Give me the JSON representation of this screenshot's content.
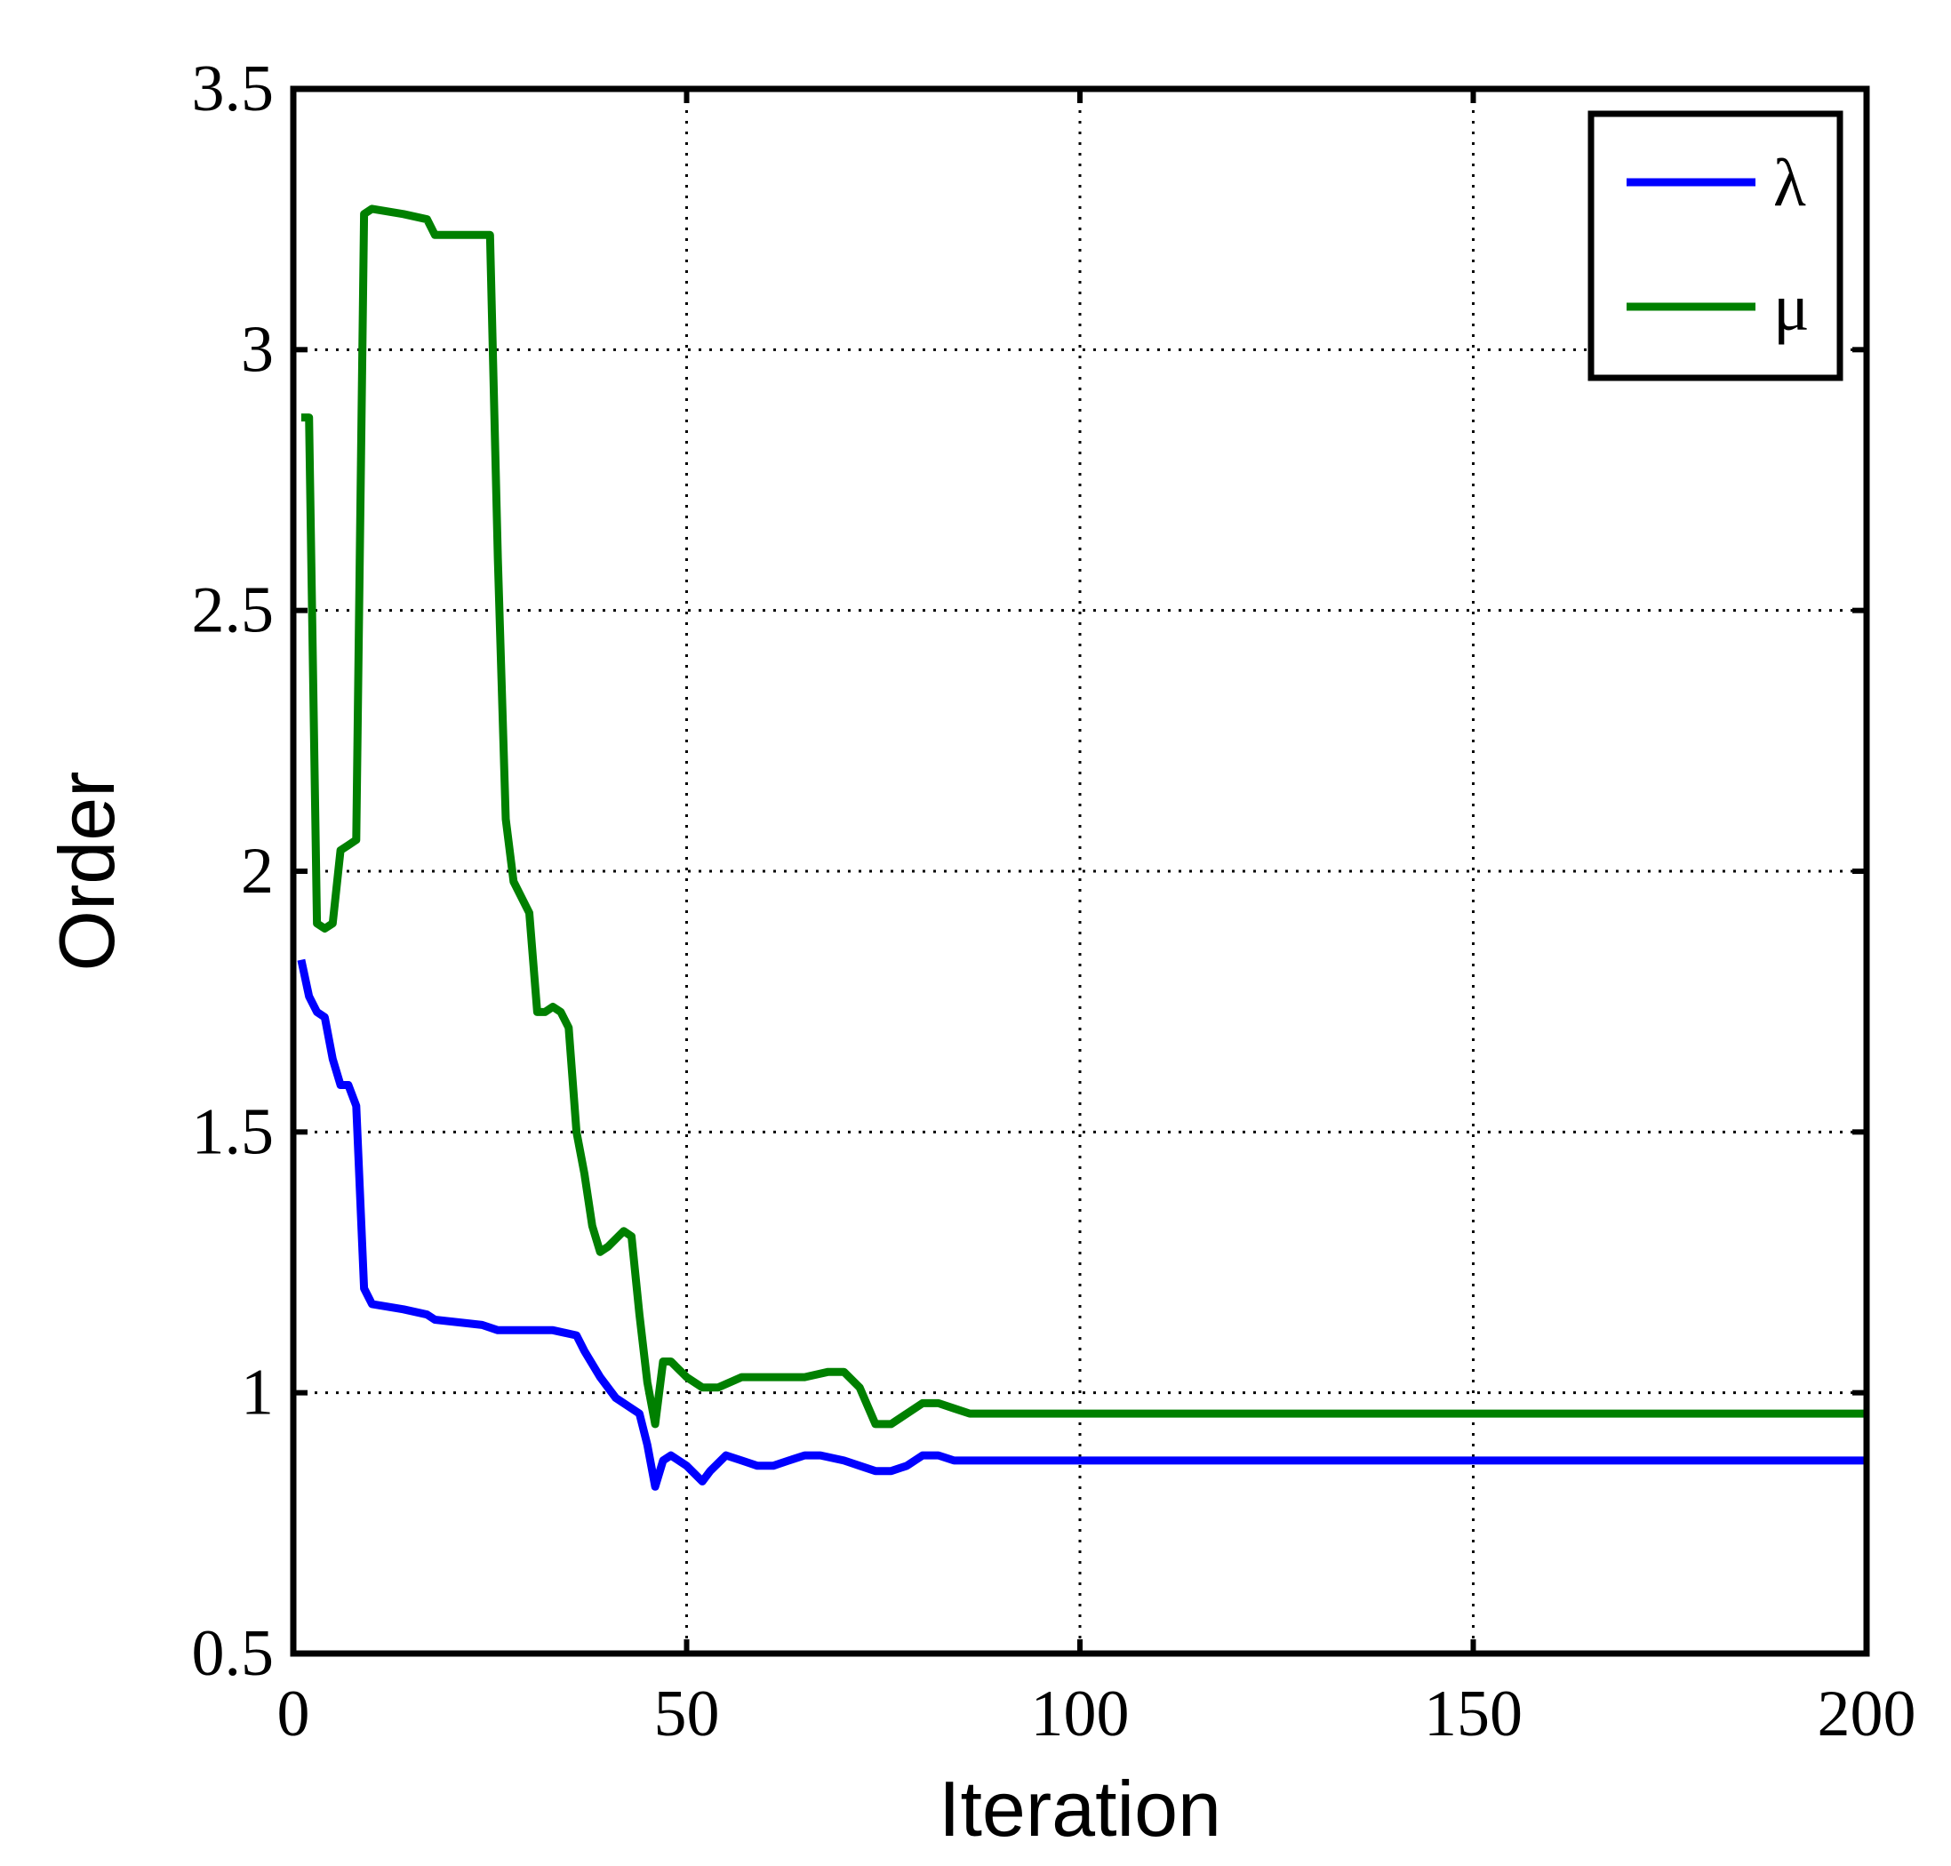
{
  "chart_data": {
    "type": "line",
    "xlabel": "Iteration",
    "ylabel": "Order",
    "xlim": [
      0,
      200
    ],
    "ylim": [
      0.5,
      3.5
    ],
    "xticks": [
      "0",
      "50",
      "100",
      "150",
      "200"
    ],
    "yticks": [
      "0.5",
      "1",
      "1.5",
      "2",
      "2.5",
      "3",
      "3.5"
    ],
    "grid": true,
    "legend_position": "top-right",
    "series": [
      {
        "name": "λ",
        "color": "#0000ff",
        "x": [
          1,
          2,
          3,
          4,
          5,
          6,
          7,
          8,
          9,
          10,
          14,
          17,
          18,
          24,
          26,
          33,
          36,
          37,
          39,
          41,
          44,
          45,
          46,
          47,
          48,
          50,
          52,
          53,
          55,
          57,
          59,
          61,
          63,
          65,
          67,
          70,
          72,
          74,
          76,
          78,
          80,
          82,
          84,
          86,
          100,
          150,
          200
        ],
        "y": [
          1.83,
          1.76,
          1.73,
          1.72,
          1.64,
          1.59,
          1.59,
          1.55,
          1.2,
          1.17,
          1.16,
          1.15,
          1.14,
          1.13,
          1.12,
          1.12,
          1.11,
          1.08,
          1.03,
          0.99,
          0.96,
          0.9,
          0.82,
          0.87,
          0.88,
          0.86,
          0.83,
          0.85,
          0.88,
          0.87,
          0.86,
          0.86,
          0.87,
          0.88,
          0.88,
          0.87,
          0.86,
          0.85,
          0.85,
          0.86,
          0.88,
          0.88,
          0.87,
          0.87,
          0.87,
          0.87,
          0.87
        ]
      },
      {
        "name": "μ",
        "color": "#008000",
        "x": [
          1,
          2,
          3,
          4,
          5,
          6,
          7,
          8,
          9,
          10,
          14,
          17,
          18,
          25,
          26,
          27,
          28,
          30,
          31,
          32,
          33,
          34,
          35,
          36,
          37,
          38,
          39,
          40,
          42,
          43,
          44,
          45,
          46,
          47,
          48,
          50,
          52,
          54,
          57,
          60,
          65,
          68,
          70,
          72,
          74,
          76,
          78,
          80,
          82,
          84,
          86,
          100,
          150,
          200
        ],
        "y": [
          2.87,
          2.87,
          1.9,
          1.89,
          1.9,
          2.04,
          2.05,
          2.06,
          3.26,
          3.27,
          3.26,
          3.25,
          3.22,
          3.22,
          2.6,
          2.1,
          1.98,
          1.92,
          1.73,
          1.73,
          1.74,
          1.73,
          1.7,
          1.5,
          1.42,
          1.32,
          1.27,
          1.28,
          1.31,
          1.3,
          1.15,
          1.02,
          0.94,
          1.06,
          1.06,
          1.03,
          1.01,
          1.01,
          1.03,
          1.03,
          1.03,
          1.04,
          1.04,
          1.01,
          0.94,
          0.94,
          0.96,
          0.98,
          0.98,
          0.97,
          0.96,
          0.96,
          0.96,
          0.96
        ]
      }
    ]
  }
}
